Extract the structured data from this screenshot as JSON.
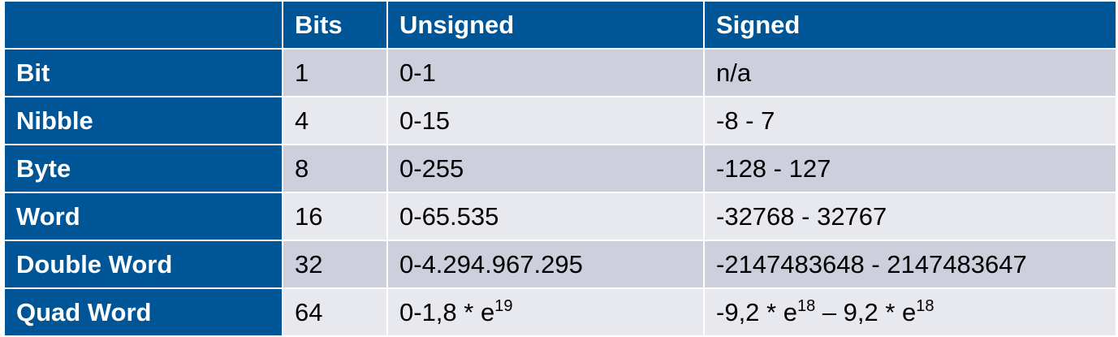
{
  "header": {
    "corner": "",
    "bits": "Bits",
    "unsigned": "Unsigned",
    "signed": "Signed"
  },
  "rows": [
    {
      "name": "Bit",
      "bits": "1",
      "unsigned": {
        "base": "0-1",
        "exp": ""
      },
      "signed": {
        "a_base": "n/a",
        "a_exp": "",
        "sep": "",
        "b_base": "",
        "b_exp": ""
      }
    },
    {
      "name": "Nibble",
      "bits": "4",
      "unsigned": {
        "base": "0-15",
        "exp": ""
      },
      "signed": {
        "a_base": "-8 - 7",
        "a_exp": "",
        "sep": "",
        "b_base": "",
        "b_exp": ""
      }
    },
    {
      "name": "Byte",
      "bits": "8",
      "unsigned": {
        "base": "0-255",
        "exp": ""
      },
      "signed": {
        "a_base": "-128 - 127",
        "a_exp": "",
        "sep": "",
        "b_base": "",
        "b_exp": ""
      }
    },
    {
      "name": "Word",
      "bits": "16",
      "unsigned": {
        "base": "0-65.535",
        "exp": ""
      },
      "signed": {
        "a_base": "-32768 - 32767",
        "a_exp": "",
        "sep": "",
        "b_base": "",
        "b_exp": ""
      }
    },
    {
      "name": "Double Word",
      "bits": "32",
      "unsigned": {
        "base": "0-4.294.967.295",
        "exp": ""
      },
      "signed": {
        "a_base": "-2147483648 - 2147483647",
        "a_exp": "",
        "sep": "",
        "b_base": "",
        "b_exp": ""
      }
    },
    {
      "name": "Quad Word",
      "bits": "64",
      "unsigned": {
        "base": "0-1,8 * e",
        "exp": "19"
      },
      "signed": {
        "a_base": "-9,2 * e",
        "a_exp": "18",
        "sep": " – ",
        "b_base": "9,2 * e",
        "b_exp": "18"
      }
    }
  ],
  "colors": {
    "header_bg": "#005596",
    "row_odd": "#cdd0dc",
    "row_even": "#e8e9ef",
    "text": "#000000",
    "header_text": "#ffffff"
  }
}
